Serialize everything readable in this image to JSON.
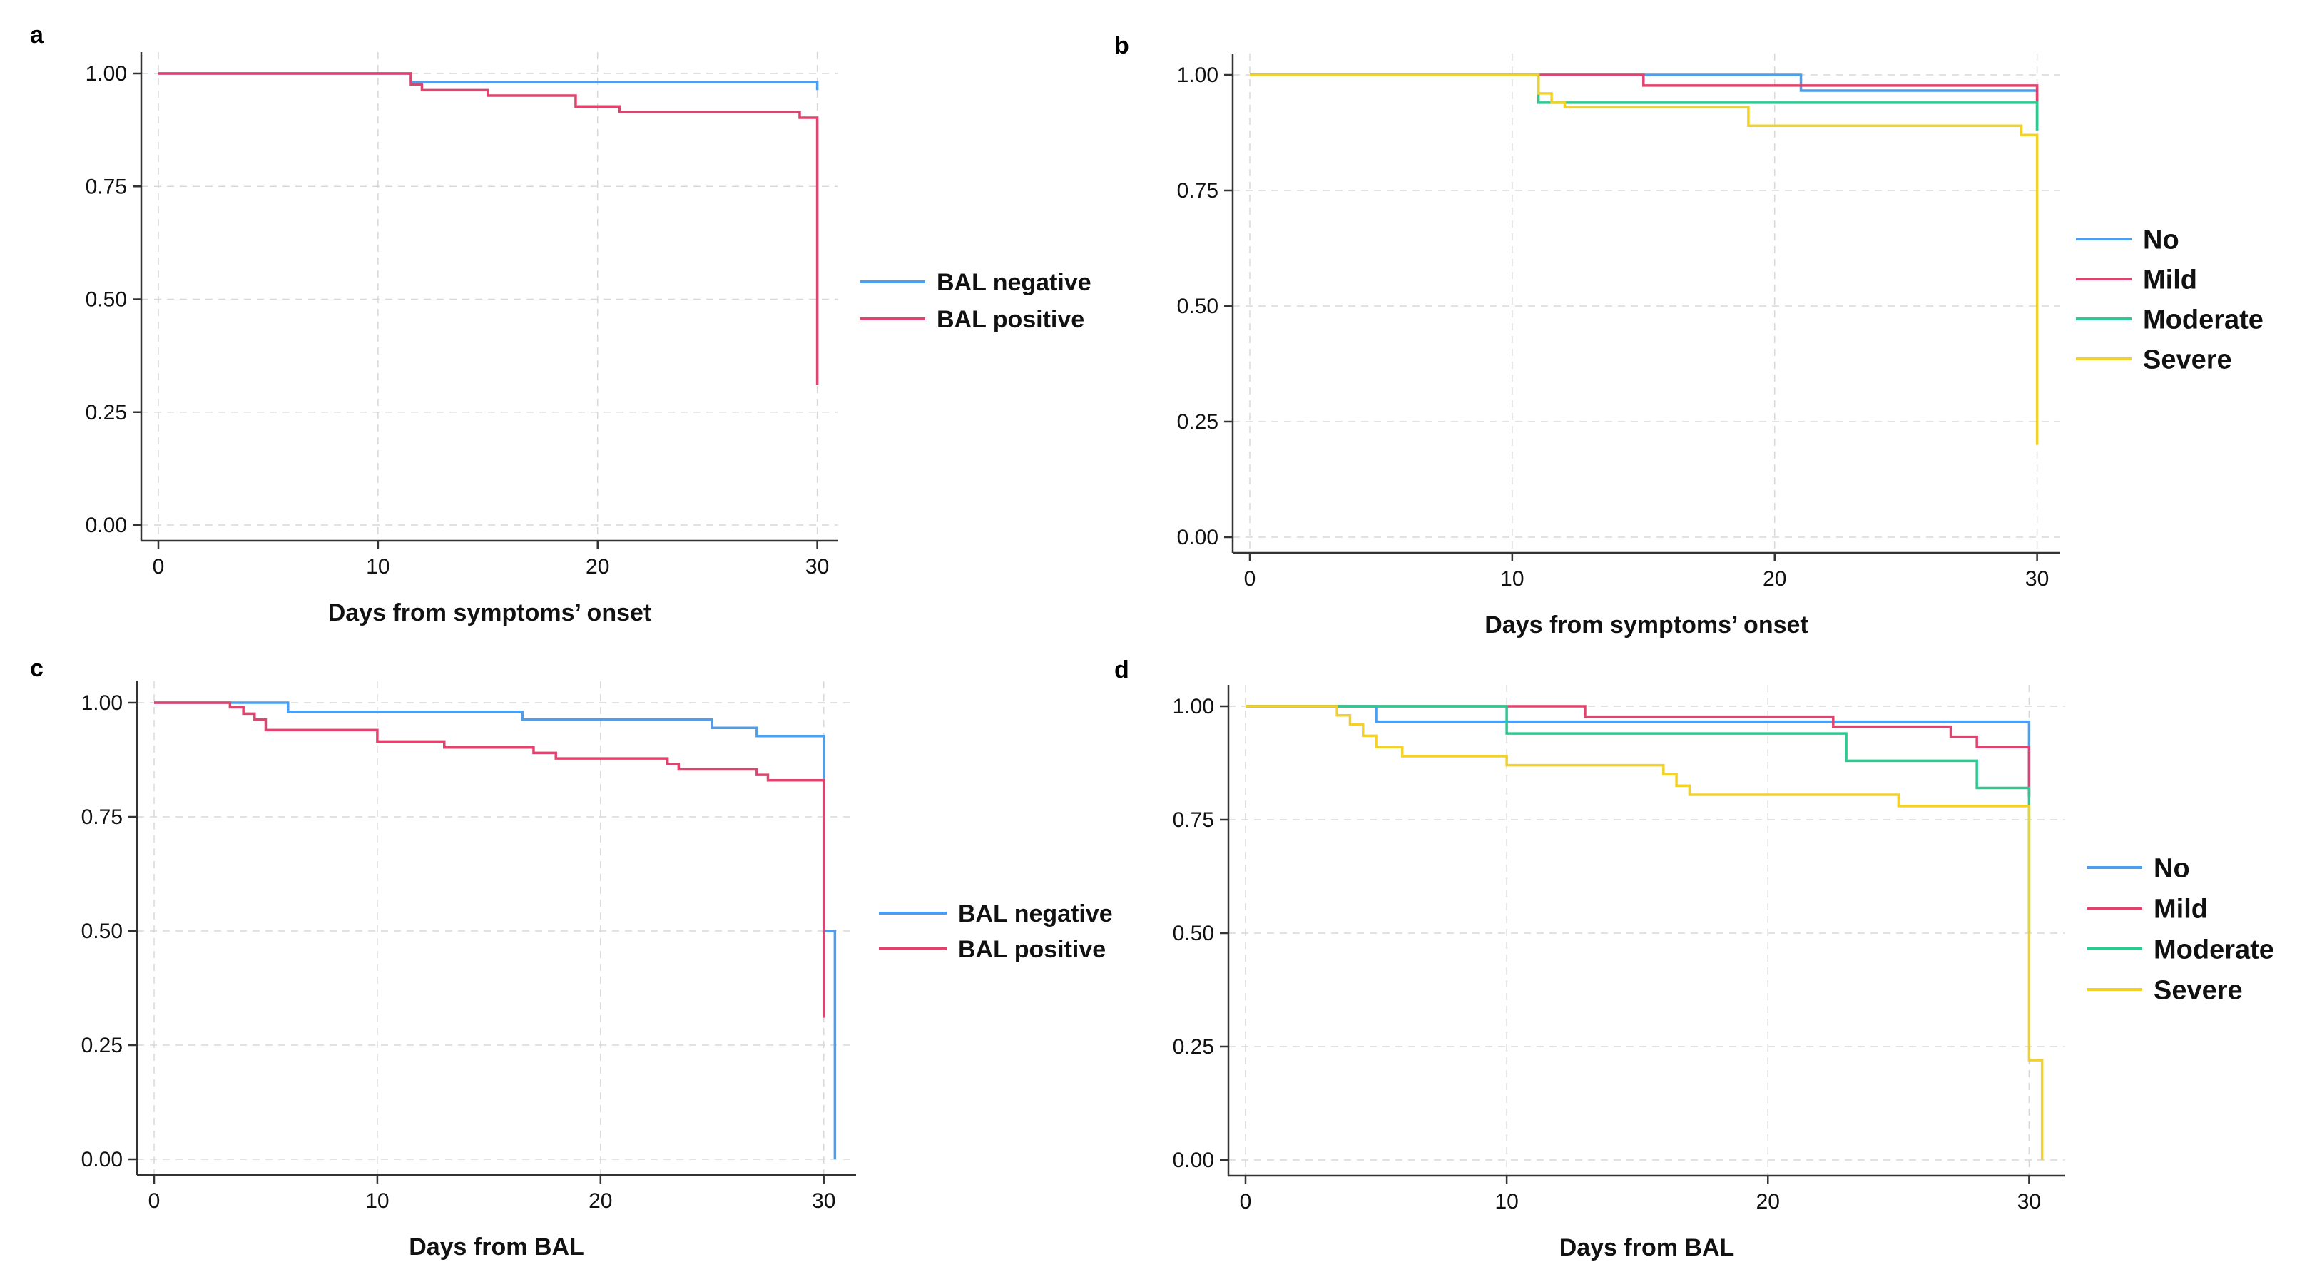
{
  "colors": {
    "no": "#4b9ff0",
    "mild": "#e0446e",
    "moderate": "#2cc990",
    "severe": "#f2d22a"
  },
  "chart_data": [
    {
      "panel": "a",
      "type": "line",
      "step": true,
      "xlabel": "Days from symptoms’ onset",
      "ylabel": "",
      "xlim": [
        0,
        30.5
      ],
      "ylim": [
        0,
        1
      ],
      "xticks": [
        0,
        10,
        20,
        30
      ],
      "yticks": [
        "0.00",
        "0.25",
        "0.50",
        "0.75",
        "1.00"
      ],
      "grid": true,
      "legend": "right",
      "series": [
        {
          "name": "BAL negative",
          "color": "#4b9ff0",
          "x": [
            0,
            11,
            11.5,
            29,
            30,
            30
          ],
          "y": [
            1,
            1,
            0.981,
            0.981,
            0.963,
            0.963
          ]
        },
        {
          "name": "BAL positive",
          "color": "#e0446e",
          "x": [
            0,
            11,
            11.5,
            12,
            15,
            19,
            21,
            29.2,
            30,
            30
          ],
          "y": [
            1,
            1,
            0.976,
            0.963,
            0.951,
            0.927,
            0.915,
            0.902,
            0.902,
            0.31
          ]
        }
      ]
    },
    {
      "panel": "b",
      "type": "line",
      "step": true,
      "xlabel": "Days from symptoms’ onset",
      "ylabel": "",
      "xlim": [
        0,
        30.5
      ],
      "ylim": [
        0,
        1
      ],
      "xticks": [
        0,
        10,
        20,
        30
      ],
      "yticks": [
        "0.00",
        "0.25",
        "0.50",
        "0.75",
        "1.00"
      ],
      "grid": true,
      "legend": "right",
      "series": [
        {
          "name": "No",
          "color": "#4b9ff0",
          "x": [
            0,
            21,
            30,
            30
          ],
          "y": [
            1,
            0.966,
            0.966,
            0.94
          ]
        },
        {
          "name": "Mild",
          "color": "#e0446e",
          "x": [
            0,
            15,
            30,
            30
          ],
          "y": [
            1,
            0.977,
            0.977,
            0.88
          ]
        },
        {
          "name": "Moderate",
          "color": "#2cc990",
          "x": [
            0,
            11,
            29.2,
            30,
            30
          ],
          "y": [
            1,
            0.94,
            0.94,
            0.88,
            0.88
          ]
        },
        {
          "name": "Severe",
          "color": "#f2d22a",
          "x": [
            0,
            11,
            11.5,
            12,
            19,
            29.4,
            30,
            30
          ],
          "y": [
            1,
            0.96,
            0.94,
            0.93,
            0.89,
            0.87,
            0.87,
            0.2
          ]
        }
      ]
    },
    {
      "panel": "c",
      "type": "line",
      "step": true,
      "xlabel": "Days from BAL",
      "ylabel": "",
      "xlim": [
        0,
        31
      ],
      "ylim": [
        0,
        1
      ],
      "xticks": [
        0,
        10,
        20,
        30
      ],
      "yticks": [
        "0.00",
        "0.25",
        "0.50",
        "0.75",
        "1.00"
      ],
      "grid": true,
      "legend": "right",
      "series": [
        {
          "name": "BAL negative",
          "color": "#4b9ff0",
          "x": [
            0,
            3.6,
            6,
            16.5,
            25,
            27,
            30,
            30,
            30.5,
            30.5
          ],
          "y": [
            1,
            1,
            0.98,
            0.963,
            0.945,
            0.927,
            0.927,
            0.5,
            0.5,
            0
          ]
        },
        {
          "name": "BAL positive",
          "color": "#e0446e",
          "x": [
            0,
            3.4,
            4,
            4.5,
            5,
            10,
            13,
            17,
            18,
            23,
            23.5,
            27,
            27.5,
            28.5,
            30,
            30
          ],
          "y": [
            1,
            0.99,
            0.976,
            0.963,
            0.94,
            0.915,
            0.902,
            0.89,
            0.878,
            0.866,
            0.854,
            0.842,
            0.83,
            0.83,
            0.83,
            0.31
          ]
        }
      ]
    },
    {
      "panel": "d",
      "type": "line",
      "step": true,
      "xlabel": "Days from BAL",
      "ylabel": "",
      "xlim": [
        0,
        31
      ],
      "ylim": [
        0,
        1
      ],
      "xticks": [
        0,
        10,
        20,
        30
      ],
      "yticks": [
        "0.00",
        "0.25",
        "0.50",
        "0.75",
        "1.00"
      ],
      "grid": true,
      "legend": "right",
      "series": [
        {
          "name": "No",
          "color": "#4b9ff0",
          "x": [
            0,
            5,
            23,
            30,
            30
          ],
          "y": [
            1,
            0.966,
            0.966,
            0.966,
            0.8
          ]
        },
        {
          "name": "Mild",
          "color": "#e0446e",
          "x": [
            0,
            13,
            22.5,
            27,
            28,
            30,
            30
          ],
          "y": [
            1,
            0.977,
            0.955,
            0.933,
            0.91,
            0.91,
            0.8
          ]
        },
        {
          "name": "Moderate",
          "color": "#2cc990",
          "x": [
            0,
            10,
            23,
            28,
            30,
            30
          ],
          "y": [
            1,
            0.94,
            0.88,
            0.82,
            0.78,
            0.5
          ]
        },
        {
          "name": "Severe",
          "color": "#f2d22a",
          "x": [
            0,
            3.5,
            4,
            4.5,
            5,
            6,
            10,
            16,
            16.5,
            17,
            25,
            30,
            30,
            30.5,
            30.5
          ],
          "y": [
            1,
            0.98,
            0.96,
            0.935,
            0.91,
            0.89,
            0.87,
            0.85,
            0.825,
            0.805,
            0.78,
            0.78,
            0.22,
            0.22,
            0
          ]
        }
      ]
    }
  ]
}
